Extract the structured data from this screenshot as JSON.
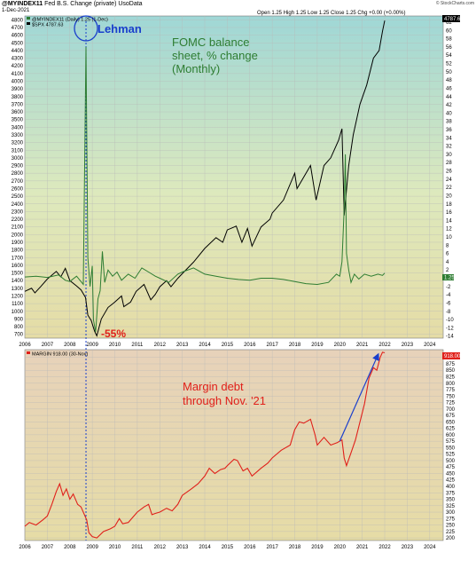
{
  "header": {
    "symbol": "@MYINDEX11",
    "name": "Fed B.S. Change (private) UsoData",
    "date": "1-Dec-2021",
    "ohlc": "Open 1.25  High 1.25  Low 1.25  Close 1.25  Chg +0.00 (+0.00%)",
    "credit": "© StockCharts.com"
  },
  "chart_data": [
    {
      "type": "line",
      "legend": [
        "@MYINDEX11 (Daily) 1.25 (1-Dec)",
        "$SPX 4787.63"
      ],
      "left_axis_ticks": [
        700,
        800,
        900,
        1000,
        1100,
        1200,
        1300,
        1400,
        1500,
        1600,
        1700,
        1800,
        1900,
        2000,
        2100,
        2200,
        2300,
        2400,
        2500,
        2600,
        2700,
        2800,
        2900,
        3000,
        3100,
        3200,
        3300,
        3400,
        3500,
        3600,
        3700,
        3800,
        3900,
        4000,
        4100,
        4200,
        4300,
        4400,
        4500,
        4600,
        4700,
        4800
      ],
      "right_axis_ticks": [
        -14,
        -12,
        -10,
        -8,
        -6,
        -4,
        -2,
        0,
        2,
        4,
        6,
        8,
        10,
        12,
        14,
        16,
        18,
        20,
        22,
        24,
        26,
        28,
        30,
        32,
        34,
        36,
        38,
        40,
        42,
        44,
        46,
        48,
        50,
        52,
        54,
        56,
        58,
        60,
        62
      ],
      "left_ylim": [
        650,
        4850
      ],
      "right_ylim": [
        -14.5,
        63.5
      ],
      "x_ticks": [
        "2006",
        "2007",
        "2008",
        "2009",
        "2010",
        "2011",
        "2012",
        "2013",
        "2014",
        "2015",
        "2016",
        "2017",
        "2018",
        "2019",
        "2020",
        "2021",
        "2022",
        "2023",
        "2024"
      ],
      "xlim": [
        2006.0,
        2024.6
      ],
      "series": [
        {
          "name": "$SPX",
          "axis": "left",
          "color": "#000000",
          "points": [
            [
              2006.0,
              1260
            ],
            [
              2006.3,
              1300
            ],
            [
              2006.45,
              1240
            ],
            [
              2006.7,
              1320
            ],
            [
              2007.0,
              1420
            ],
            [
              2007.4,
              1520
            ],
            [
              2007.6,
              1450
            ],
            [
              2007.8,
              1560
            ],
            [
              2008.0,
              1400
            ],
            [
              2008.3,
              1330
            ],
            [
              2008.5,
              1280
            ],
            [
              2008.7,
              1180
            ],
            [
              2008.8,
              950
            ],
            [
              2008.95,
              880
            ],
            [
              2009.1,
              740
            ],
            [
              2009.2,
              680
            ],
            [
              2009.4,
              900
            ],
            [
              2009.7,
              1050
            ],
            [
              2010.0,
              1120
            ],
            [
              2010.3,
              1200
            ],
            [
              2010.4,
              1060
            ],
            [
              2010.7,
              1120
            ],
            [
              2010.95,
              1260
            ],
            [
              2011.3,
              1350
            ],
            [
              2011.6,
              1150
            ],
            [
              2011.8,
              1220
            ],
            [
              2012.0,
              1320
            ],
            [
              2012.3,
              1400
            ],
            [
              2012.5,
              1320
            ],
            [
              2012.8,
              1430
            ],
            [
              2013.0,
              1490
            ],
            [
              2013.5,
              1640
            ],
            [
              2014.0,
              1820
            ],
            [
              2014.5,
              1960
            ],
            [
              2014.8,
              1900
            ],
            [
              2015.0,
              2060
            ],
            [
              2015.4,
              2110
            ],
            [
              2015.65,
              1900
            ],
            [
              2015.9,
              2080
            ],
            [
              2016.1,
              1850
            ],
            [
              2016.5,
              2100
            ],
            [
              2016.9,
              2200
            ],
            [
              2017.0,
              2280
            ],
            [
              2017.5,
              2450
            ],
            [
              2018.0,
              2800
            ],
            [
              2018.1,
              2600
            ],
            [
              2018.7,
              2900
            ],
            [
              2018.95,
              2450
            ],
            [
              2019.3,
              2900
            ],
            [
              2019.6,
              3000
            ],
            [
              2019.95,
              3230
            ],
            [
              2020.1,
              3380
            ],
            [
              2020.2,
              2250
            ],
            [
              2020.4,
              2900
            ],
            [
              2020.6,
              3300
            ],
            [
              2020.9,
              3700
            ],
            [
              2021.2,
              3950
            ],
            [
              2021.5,
              4300
            ],
            [
              2021.75,
              4400
            ],
            [
              2021.9,
              4650
            ],
            [
              2022.0,
              4790
            ]
          ]
        },
        {
          "name": "@MYINDEX11",
          "axis": "right",
          "color": "#2e7d32",
          "points": [
            [
              2006.0,
              0.3
            ],
            [
              2006.5,
              0.5
            ],
            [
              2007.0,
              0.2
            ],
            [
              2007.5,
              0.8
            ],
            [
              2007.8,
              -0.5
            ],
            [
              2008.0,
              -0.8
            ],
            [
              2008.3,
              0.5
            ],
            [
              2008.6,
              -1.5
            ],
            [
              2008.72,
              56
            ],
            [
              2008.8,
              5
            ],
            [
              2008.9,
              -2
            ],
            [
              2009.0,
              3
            ],
            [
              2009.05,
              -10
            ],
            [
              2009.15,
              -13
            ],
            [
              2009.25,
              -5
            ],
            [
              2009.35,
              -3
            ],
            [
              2009.45,
              6.5
            ],
            [
              2009.55,
              -1
            ],
            [
              2009.7,
              2
            ],
            [
              2009.9,
              0.5
            ],
            [
              2010.1,
              1.5
            ],
            [
              2010.3,
              -0.5
            ],
            [
              2010.6,
              1
            ],
            [
              2010.9,
              0
            ],
            [
              2011.2,
              2.5
            ],
            [
              2011.5,
              1.5
            ],
            [
              2011.8,
              0.5
            ],
            [
              2012.0,
              0
            ],
            [
              2012.4,
              -1
            ],
            [
              2012.8,
              1
            ],
            [
              2013.0,
              1.5
            ],
            [
              2013.5,
              2.5
            ],
            [
              2014.0,
              1
            ],
            [
              2014.5,
              0.5
            ],
            [
              2015.0,
              0
            ],
            [
              2015.5,
              -0.3
            ],
            [
              2016.0,
              -0.5
            ],
            [
              2016.5,
              0
            ],
            [
              2017.0,
              0
            ],
            [
              2017.5,
              -0.3
            ],
            [
              2018.0,
              -0.8
            ],
            [
              2018.5,
              -1.3
            ],
            [
              2019.0,
              -1.5
            ],
            [
              2019.5,
              -1
            ],
            [
              2019.85,
              1
            ],
            [
              2020.0,
              0.5
            ],
            [
              2020.1,
              4
            ],
            [
              2020.2,
              17
            ],
            [
              2020.25,
              30
            ],
            [
              2020.3,
              6
            ],
            [
              2020.4,
              2
            ],
            [
              2020.5,
              -1
            ],
            [
              2020.65,
              1
            ],
            [
              2020.85,
              -0.2
            ],
            [
              2021.1,
              1
            ],
            [
              2021.4,
              0.5
            ],
            [
              2021.7,
              1
            ],
            [
              2021.9,
              0.7
            ],
            [
              2022.0,
              1.25
            ]
          ]
        }
      ],
      "annotations": [
        {
          "text": "FOMC balance",
          "color": "#2e7d32"
        },
        {
          "text": "sheet, % change",
          "color": "#2e7d32"
        },
        {
          "text": "(Monthly)",
          "color": "#2e7d32"
        },
        {
          "text": "Lehman",
          "color": "#1a3fcc"
        },
        {
          "text": "-55%",
          "color": "#e0201a"
        }
      ],
      "right_last_label": "4787.6",
      "right_last_label_2": "1.25",
      "grid": true
    },
    {
      "type": "line",
      "legend": [
        "MARGIN 918.00 (30-Nov)"
      ],
      "left_axis_ticks": [
        200,
        225,
        250,
        275,
        300,
        325,
        350,
        375,
        400,
        425,
        450,
        475,
        500,
        525,
        550,
        575,
        600,
        625,
        650,
        675,
        700,
        725,
        750,
        775,
        800,
        825,
        850,
        875,
        900
      ],
      "ylim": [
        190,
        930
      ],
      "x_ticks": [
        "2006",
        "2007",
        "2008",
        "2009",
        "2010",
        "2011",
        "2012",
        "2013",
        "2014",
        "2015",
        "2016",
        "2017",
        "2018",
        "2019",
        "2020",
        "2021",
        "2022",
        "2023",
        "2024"
      ],
      "xlim": [
        2006.0,
        2024.6
      ],
      "series": [
        {
          "name": "MARGIN",
          "color": "#e0201a",
          "points": [
            [
              2006.0,
              245
            ],
            [
              2006.2,
              260
            ],
            [
              2006.5,
              250
            ],
            [
              2006.8,
              270
            ],
            [
              2007.0,
              285
            ],
            [
              2007.2,
              330
            ],
            [
              2007.4,
              380
            ],
            [
              2007.55,
              410
            ],
            [
              2007.7,
              365
            ],
            [
              2007.85,
              390
            ],
            [
              2008.0,
              350
            ],
            [
              2008.15,
              370
            ],
            [
              2008.35,
              330
            ],
            [
              2008.5,
              320
            ],
            [
              2008.75,
              270
            ],
            [
              2008.85,
              220
            ],
            [
              2009.0,
              205
            ],
            [
              2009.2,
              200
            ],
            [
              2009.5,
              225
            ],
            [
              2009.8,
              235
            ],
            [
              2010.0,
              245
            ],
            [
              2010.2,
              275
            ],
            [
              2010.35,
              255
            ],
            [
              2010.6,
              260
            ],
            [
              2010.8,
              280
            ],
            [
              2011.0,
              300
            ],
            [
              2011.3,
              320
            ],
            [
              2011.5,
              330
            ],
            [
              2011.65,
              290
            ],
            [
              2011.8,
              295
            ],
            [
              2012.0,
              300
            ],
            [
              2012.3,
              315
            ],
            [
              2012.55,
              305
            ],
            [
              2012.8,
              330
            ],
            [
              2013.0,
              365
            ],
            [
              2013.4,
              390
            ],
            [
              2013.7,
              410
            ],
            [
              2014.0,
              440
            ],
            [
              2014.2,
              470
            ],
            [
              2014.45,
              450
            ],
            [
              2014.7,
              465
            ],
            [
              2014.9,
              470
            ],
            [
              2015.0,
              480
            ],
            [
              2015.3,
              505
            ],
            [
              2015.45,
              500
            ],
            [
              2015.7,
              460
            ],
            [
              2015.9,
              470
            ],
            [
              2016.1,
              440
            ],
            [
              2016.5,
              470
            ],
            [
              2016.8,
              490
            ],
            [
              2017.0,
              510
            ],
            [
              2017.4,
              540
            ],
            [
              2017.8,
              560
            ],
            [
              2018.0,
              620
            ],
            [
              2018.2,
              650
            ],
            [
              2018.4,
              645
            ],
            [
              2018.7,
              660
            ],
            [
              2018.9,
              600
            ],
            [
              2019.0,
              560
            ],
            [
              2019.3,
              590
            ],
            [
              2019.6,
              560
            ],
            [
              2019.9,
              570
            ],
            [
              2020.1,
              580
            ],
            [
              2020.2,
              510
            ],
            [
              2020.3,
              480
            ],
            [
              2020.5,
              530
            ],
            [
              2020.7,
              580
            ],
            [
              2020.9,
              650
            ],
            [
              2021.1,
              720
            ],
            [
              2021.3,
              820
            ],
            [
              2021.5,
              860
            ],
            [
              2021.65,
              850
            ],
            [
              2021.8,
              900
            ],
            [
              2021.9,
              920
            ],
            [
              2022.0,
              918
            ]
          ]
        }
      ],
      "trend_arrow": {
        "from": [
          2020.0,
          575
        ],
        "to": [
          2021.7,
          910
        ],
        "color": "#1a3fcc"
      },
      "annotations": [
        {
          "text": "Margin debt",
          "color": "#e0201a"
        },
        {
          "text": "through Nov. '21",
          "color": "#e0201a"
        }
      ],
      "right_last_label": "918.00",
      "grid": true
    }
  ],
  "colors": {
    "top_bg_top": "#9fd7d6",
    "top_bg_mid": "#dde9bd",
    "top_bg_bot": "#e5dca6",
    "bottom_bg_top": "#e7d2ba",
    "bottom_bg_bot": "#e6dca6",
    "lehman_line": "#1a3fcc",
    "spx_line": "#000000",
    "fed_line": "#2e7d32",
    "margin_line": "#e0201a"
  }
}
